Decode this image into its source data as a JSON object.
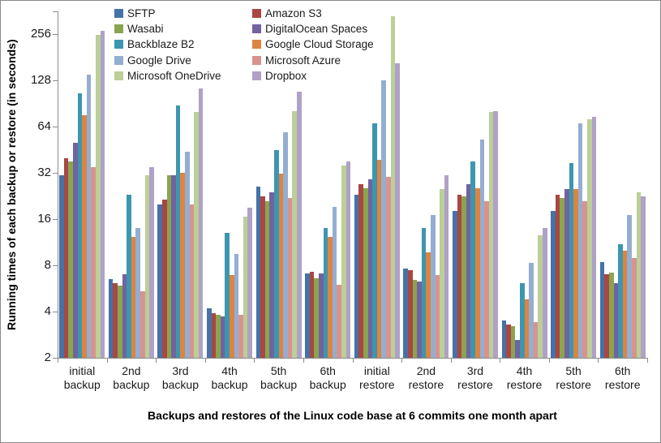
{
  "figure": {
    "y_axis_title": "Running times of each backup or restore (in seconds)",
    "x_axis_title": "Backups and restores of the Linux code base at 6 commits one month apart"
  },
  "chart_data": {
    "type": "bar",
    "title": "",
    "xlabel": "Backups and restores of the Linux code base at 6 commits one month apart",
    "ylabel": "Running times of each backup or restore (in seconds)",
    "y_scale": "log2",
    "y_ticks": [
      2,
      4,
      8,
      16,
      32,
      64,
      128,
      256
    ],
    "ylim": [
      2,
      360
    ],
    "grid": false,
    "legend_position": "top-left, two columns, row-major",
    "categories": [
      "initial backup",
      "2nd backup",
      "3rd backup",
      "4th backup",
      "5th backup",
      "6th backup",
      "initial restore",
      "2nd restore",
      "3rd restore",
      "4th restore",
      "5th restore",
      "6th restore"
    ],
    "series": [
      {
        "name": "SFTP",
        "color": "#4572A7",
        "values": [
          31,
          6.5,
          20,
          4.2,
          26,
          7.1,
          23,
          7.6,
          18,
          3.5,
          18,
          8.4
        ]
      },
      {
        "name": "Amazon S3",
        "color": "#AA4643",
        "values": [
          40,
          6.1,
          21.5,
          3.9,
          22.5,
          7.3,
          27,
          7.4,
          23,
          3.3,
          23,
          7
        ]
      },
      {
        "name": "Wasabi",
        "color": "#89A54E",
        "values": [
          38,
          5.9,
          31,
          3.8,
          21,
          6.6,
          25.5,
          6.4,
          22.5,
          3.2,
          22,
          7.2
        ]
      },
      {
        "name": "DigitalOcean Spaces",
        "color": "#72639E",
        "values": [
          50,
          7,
          31,
          3.7,
          24,
          7.1,
          29,
          6.3,
          27,
          2.6,
          25,
          6.1
        ]
      },
      {
        "name": "Backblaze B2",
        "color": "#3C96B0",
        "values": [
          105,
          23,
          88,
          13,
          45,
          14,
          67,
          14,
          38,
          6.1,
          37,
          11
        ]
      },
      {
        "name": "Google Cloud Storage",
        "color": "#DC8440",
        "values": [
          76,
          12.3,
          32,
          6.9,
          31.5,
          12.3,
          39,
          9.7,
          25.5,
          4.8,
          25,
          10
        ]
      },
      {
        "name": "Google Drive",
        "color": "#94AED2",
        "values": [
          140,
          14,
          44,
          9.5,
          59,
          19.3,
          128,
          17,
          53,
          8.3,
          67,
          17
        ]
      },
      {
        "name": "Microsoft Azure",
        "color": "#D9938F",
        "values": [
          35,
          5.4,
          20,
          3.8,
          22,
          6,
          30,
          6.9,
          21,
          3.4,
          21,
          8.9
        ]
      },
      {
        "name": "Microsoft OneDrive",
        "color": "#BBCF96",
        "values": [
          253,
          31,
          80,
          16.5,
          81,
          35.5,
          335,
          25,
          80,
          12.5,
          71,
          24
        ]
      },
      {
        "name": "Dropbox",
        "color": "#B0A1C7",
        "values": [
          268,
          35,
          113,
          19,
          108,
          38,
          165,
          31,
          81,
          14,
          74,
          22.5
        ]
      }
    ]
  }
}
